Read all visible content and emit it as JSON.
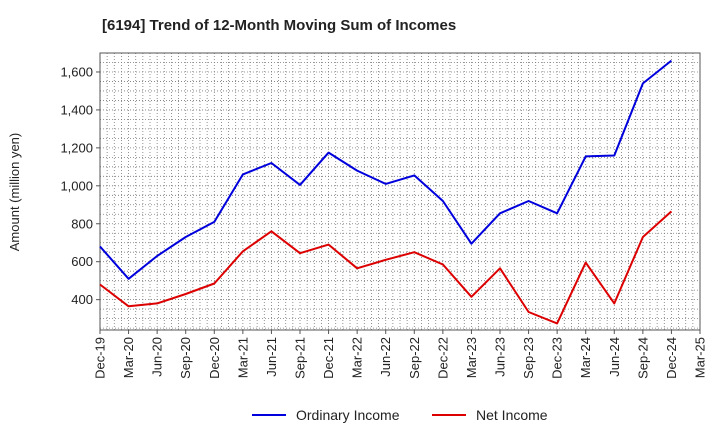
{
  "chart_data": {
    "type": "line",
    "title": "[6194]  Trend of 12-Month Moving Sum of Incomes",
    "xlabel": "",
    "ylabel": "Amount (million yen)",
    "ylim": [
      240,
      1700
    ],
    "yticks": [
      400,
      600,
      800,
      1000,
      1200,
      1400,
      1600
    ],
    "ytick_labels": [
      "400",
      "600",
      "800",
      "1,000",
      "1,200",
      "1,400",
      "1,600"
    ],
    "categories": [
      "Dec-19",
      "Mar-20",
      "Jun-20",
      "Sep-20",
      "Dec-20",
      "Mar-21",
      "Jun-21",
      "Sep-21",
      "Dec-21",
      "Mar-22",
      "Jun-22",
      "Sep-22",
      "Dec-22",
      "Mar-23",
      "Jun-23",
      "Sep-23",
      "Dec-23",
      "Mar-24",
      "Jun-24",
      "Sep-24",
      "Dec-24",
      "Mar-25"
    ],
    "series": [
      {
        "name": "Ordinary Income",
        "color": "#0000dd",
        "values": [
          680,
          510,
          630,
          730,
          810,
          1060,
          1120,
          1005,
          1175,
          1080,
          1010,
          1055,
          920,
          695,
          855,
          920,
          855,
          1155,
          1160,
          1540,
          1660,
          null
        ]
      },
      {
        "name": "Net Income",
        "color": "#dd0000",
        "values": [
          480,
          365,
          380,
          430,
          485,
          655,
          760,
          645,
          690,
          565,
          610,
          650,
          585,
          415,
          565,
          335,
          275,
          595,
          380,
          730,
          865,
          null
        ]
      }
    ],
    "grid": true,
    "legend_position": "bottom-center"
  }
}
